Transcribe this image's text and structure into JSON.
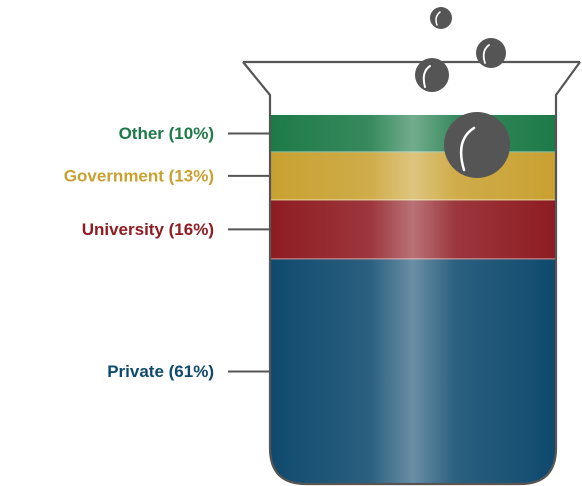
{
  "chart_data": {
    "type": "stacked-bar",
    "title": "",
    "segments": [
      {
        "name": "Private",
        "label": "Private (61%)",
        "value": 61,
        "color": "#0e4a6e"
      },
      {
        "name": "University",
        "label": "University (16%)",
        "value": 16,
        "color": "#8e1c22"
      },
      {
        "name": "Government",
        "label": "Government (13%)",
        "value": 13,
        "color": "#c9a131"
      },
      {
        "name": "Other",
        "label": "Other (10%)",
        "value": 10,
        "color": "#1d7a48"
      }
    ],
    "container_color": "#555555",
    "bubble_color": "#555555"
  }
}
